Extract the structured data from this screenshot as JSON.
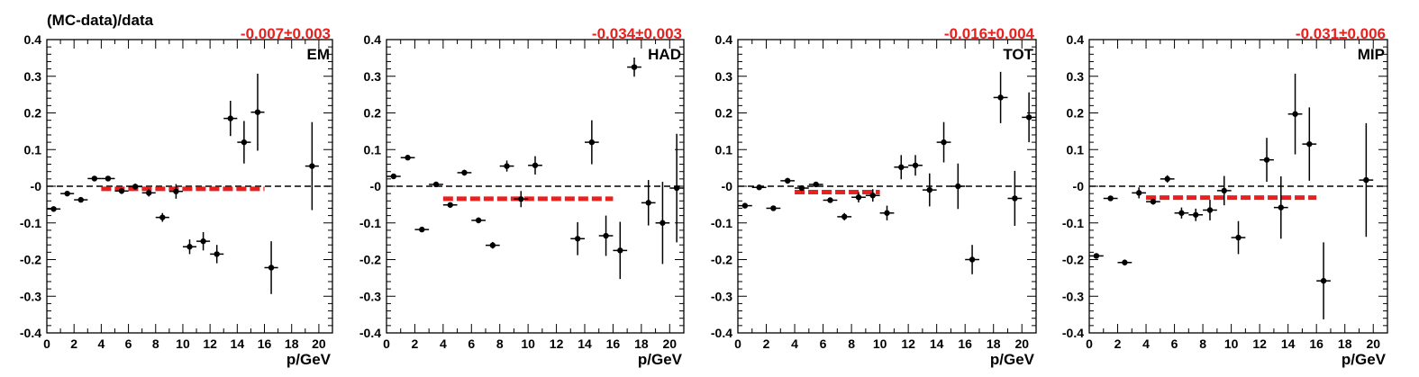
{
  "figure": {
    "ytitle": "(MC-data)/data"
  },
  "chart_data": [
    {
      "type": "scatter",
      "label": "EM",
      "fit_text": "-0.007±0.003",
      "fit_value": -0.007,
      "fit_range": [
        4,
        16
      ],
      "xlabel": "p/GeV",
      "ylabel": "(MC-data)/data",
      "xlim": [
        0,
        21
      ],
      "ylim": [
        -0.4,
        0.4
      ],
      "x_ticks": [
        "0",
        "2",
        "4",
        "6",
        "8",
        "10",
        "12",
        "14",
        "16",
        "18",
        "20"
      ],
      "y_ticks": [
        "-0.4",
        "-0.3",
        "-0.2",
        "-0.1",
        "-0",
        "0.1",
        "0.2",
        "0.3",
        "0.4"
      ],
      "reference_line": 0,
      "colors": {
        "points": "#000000",
        "fit": "#e8201e",
        "fit_text": "#e8201e"
      },
      "points": [
        {
          "x": 0.5,
          "y": -0.062,
          "err": 0.006
        },
        {
          "x": 1.5,
          "y": -0.02,
          "err": 0.006
        },
        {
          "x": 2.5,
          "y": -0.037,
          "err": 0.006
        },
        {
          "x": 3.5,
          "y": 0.021,
          "err": 0.007
        },
        {
          "x": 4.5,
          "y": 0.021,
          "err": 0.006
        },
        {
          "x": 5.5,
          "y": -0.013,
          "err": 0.008
        },
        {
          "x": 6.5,
          "y": -0.001,
          "err": 0.008
        },
        {
          "x": 7.5,
          "y": -0.018,
          "err": 0.01
        },
        {
          "x": 8.5,
          "y": -0.085,
          "err": 0.012
        },
        {
          "x": 9.5,
          "y": -0.014,
          "err": 0.02
        },
        {
          "x": 10.5,
          "y": -0.165,
          "err": 0.02
        },
        {
          "x": 11.5,
          "y": -0.15,
          "err": 0.025
        },
        {
          "x": 12.5,
          "y": -0.185,
          "err": 0.025
        },
        {
          "x": 13.5,
          "y": 0.185,
          "err": 0.048
        },
        {
          "x": 14.5,
          "y": 0.12,
          "err": 0.058
        },
        {
          "x": 15.5,
          "y": 0.202,
          "err": 0.105
        },
        {
          "x": 16.5,
          "y": -0.222,
          "err": 0.072
        },
        {
          "x": 19.5,
          "y": 0.055,
          "err": 0.12
        }
      ]
    },
    {
      "type": "scatter",
      "label": "HAD",
      "fit_text": "-0.034±0.003",
      "fit_value": -0.034,
      "fit_range": [
        4,
        16
      ],
      "xlabel": "p/GeV",
      "ylabel": "",
      "xlim": [
        0,
        21
      ],
      "ylim": [
        -0.4,
        0.4
      ],
      "x_ticks": [
        "0",
        "2",
        "4",
        "6",
        "8",
        "10",
        "12",
        "14",
        "16",
        "18",
        "20"
      ],
      "y_ticks": [
        "-0.4",
        "-0.3",
        "-0.2",
        "-0.1",
        "-0",
        "0.1",
        "0.2",
        "0.3",
        "0.4"
      ],
      "reference_line": 0,
      "colors": {
        "points": "#000000",
        "fit": "#e8201e",
        "fit_text": "#e8201e"
      },
      "points": [
        {
          "x": 0.5,
          "y": 0.027,
          "err": 0.006
        },
        {
          "x": 1.5,
          "y": 0.078,
          "err": 0.006
        },
        {
          "x": 2.5,
          "y": -0.118,
          "err": 0.006
        },
        {
          "x": 3.5,
          "y": 0.005,
          "err": 0.007
        },
        {
          "x": 4.5,
          "y": -0.051,
          "err": 0.007
        },
        {
          "x": 5.5,
          "y": 0.037,
          "err": 0.008
        },
        {
          "x": 6.5,
          "y": -0.093,
          "err": 0.008
        },
        {
          "x": 7.5,
          "y": -0.161,
          "err": 0.009
        },
        {
          "x": 8.5,
          "y": 0.055,
          "err": 0.015
        },
        {
          "x": 9.5,
          "y": -0.035,
          "err": 0.022
        },
        {
          "x": 10.5,
          "y": 0.057,
          "err": 0.025
        },
        {
          "x": 13.5,
          "y": -0.143,
          "err": 0.045
        },
        {
          "x": 14.5,
          "y": 0.12,
          "err": 0.06
        },
        {
          "x": 15.5,
          "y": -0.135,
          "err": 0.055
        },
        {
          "x": 16.5,
          "y": -0.175,
          "err": 0.078
        },
        {
          "x": 17.5,
          "y": 0.325,
          "err": 0.026
        },
        {
          "x": 18.5,
          "y": -0.045,
          "err": 0.062
        },
        {
          "x": 19.5,
          "y": -0.1,
          "err": 0.112
        },
        {
          "x": 20.5,
          "y": -0.005,
          "err": 0.148
        }
      ]
    },
    {
      "type": "scatter",
      "label": "TOT",
      "fit_text": "-0.016±0.004",
      "fit_value": -0.016,
      "fit_range": [
        4,
        10
      ],
      "xlabel": "p/GeV",
      "ylabel": "",
      "xlim": [
        0,
        21
      ],
      "ylim": [
        -0.4,
        0.4
      ],
      "x_ticks": [
        "0",
        "2",
        "4",
        "6",
        "8",
        "10",
        "12",
        "14",
        "16",
        "18",
        "20"
      ],
      "y_ticks": [
        "-0.4",
        "-0.3",
        "-0.2",
        "-0.1",
        "-0",
        "0.1",
        "0.2",
        "0.3",
        "0.4"
      ],
      "reference_line": 0,
      "colors": {
        "points": "#000000",
        "fit": "#e8201e",
        "fit_text": "#e8201e"
      },
      "points": [
        {
          "x": 0.5,
          "y": -0.053,
          "err": 0.006
        },
        {
          "x": 1.5,
          "y": -0.003,
          "err": 0.005
        },
        {
          "x": 2.5,
          "y": -0.06,
          "err": 0.006
        },
        {
          "x": 3.5,
          "y": 0.015,
          "err": 0.008
        },
        {
          "x": 4.5,
          "y": -0.005,
          "err": 0.007
        },
        {
          "x": 5.5,
          "y": 0.005,
          "err": 0.006
        },
        {
          "x": 6.5,
          "y": -0.038,
          "err": 0.007
        },
        {
          "x": 7.5,
          "y": -0.083,
          "err": 0.01
        },
        {
          "x": 8.5,
          "y": -0.03,
          "err": 0.014
        },
        {
          "x": 9.5,
          "y": -0.025,
          "err": 0.017
        },
        {
          "x": 10.5,
          "y": -0.073,
          "err": 0.02
        },
        {
          "x": 11.5,
          "y": 0.052,
          "err": 0.033
        },
        {
          "x": 12.5,
          "y": 0.057,
          "err": 0.028
        },
        {
          "x": 13.5,
          "y": -0.01,
          "err": 0.045
        },
        {
          "x": 14.5,
          "y": 0.12,
          "err": 0.055
        },
        {
          "x": 15.5,
          "y": 0.0,
          "err": 0.062
        },
        {
          "x": 16.5,
          "y": -0.2,
          "err": 0.04
        },
        {
          "x": 18.5,
          "y": 0.242,
          "err": 0.07
        },
        {
          "x": 19.5,
          "y": -0.033,
          "err": 0.075
        },
        {
          "x": 20.5,
          "y": 0.188,
          "err": 0.068
        }
      ]
    },
    {
      "type": "scatter",
      "label": "MIP",
      "fit_text": "-0.031±0.006",
      "fit_value": -0.031,
      "fit_range": [
        4,
        16
      ],
      "xlabel": "p/GeV",
      "ylabel": "",
      "xlim": [
        0,
        21
      ],
      "ylim": [
        -0.4,
        0.4
      ],
      "x_ticks": [
        "0",
        "2",
        "4",
        "6",
        "8",
        "10",
        "12",
        "14",
        "16",
        "18",
        "20"
      ],
      "y_ticks": [
        "-0.4",
        "-0.3",
        "-0.2",
        "-0.1",
        "-0",
        "0.1",
        "0.2",
        "0.3",
        "0.4"
      ],
      "reference_line": 0,
      "colors": {
        "points": "#000000",
        "fit": "#e8201e",
        "fit_text": "#e8201e"
      },
      "points": [
        {
          "x": 0.5,
          "y": -0.19,
          "err": 0.007
        },
        {
          "x": 1.5,
          "y": -0.033,
          "err": 0.006
        },
        {
          "x": 2.5,
          "y": -0.208,
          "err": 0.008
        },
        {
          "x": 3.5,
          "y": -0.018,
          "err": 0.015
        },
        {
          "x": 4.5,
          "y": -0.042,
          "err": 0.008
        },
        {
          "x": 5.5,
          "y": 0.02,
          "err": 0.01
        },
        {
          "x": 6.5,
          "y": -0.073,
          "err": 0.015
        },
        {
          "x": 7.5,
          "y": -0.078,
          "err": 0.017
        },
        {
          "x": 8.5,
          "y": -0.065,
          "err": 0.028
        },
        {
          "x": 9.5,
          "y": -0.012,
          "err": 0.04
        },
        {
          "x": 10.5,
          "y": -0.14,
          "err": 0.045
        },
        {
          "x": 12.5,
          "y": 0.072,
          "err": 0.06
        },
        {
          "x": 13.5,
          "y": -0.058,
          "err": 0.085
        },
        {
          "x": 14.5,
          "y": 0.197,
          "err": 0.11
        },
        {
          "x": 15.5,
          "y": 0.115,
          "err": 0.1
        },
        {
          "x": 16.5,
          "y": -0.258,
          "err": 0.105
        },
        {
          "x": 19.5,
          "y": 0.017,
          "err": 0.155
        }
      ]
    }
  ]
}
